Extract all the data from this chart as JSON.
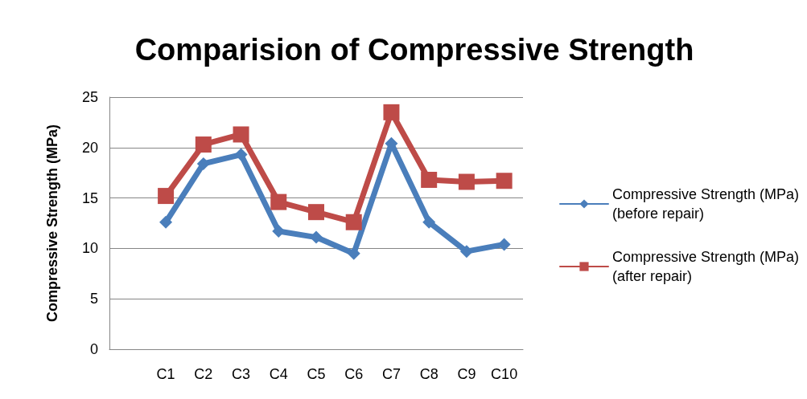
{
  "chart_data": {
    "type": "line",
    "title": "Comparision of Compressive Strength",
    "ylabel": "Compressive Strength (MPa)",
    "categories": [
      null,
      "C1",
      "C2",
      "C3",
      "C4",
      "C5",
      "C6",
      "C7",
      "C8",
      "C9",
      "C10"
    ],
    "series": [
      {
        "name": "Compressive Strength (MPa) (before repair)",
        "color": "#4a7ebb",
        "marker": "diamond",
        "values": [
          null,
          12.6,
          18.4,
          19.3,
          11.7,
          11.1,
          9.5,
          20.4,
          12.6,
          9.7,
          10.4
        ]
      },
      {
        "name": "Compressive Strength (MPa) (after repair)",
        "color": "#be4b48",
        "marker": "square",
        "values": [
          null,
          15.2,
          20.3,
          21.3,
          14.6,
          13.6,
          12.6,
          23.5,
          16.8,
          16.6,
          16.7
        ]
      }
    ],
    "ylim": [
      0,
      25
    ],
    "yticks": [
      0,
      5,
      10,
      15,
      20,
      25
    ],
    "grid": "y",
    "legend": "right",
    "line_style": "solid"
  }
}
